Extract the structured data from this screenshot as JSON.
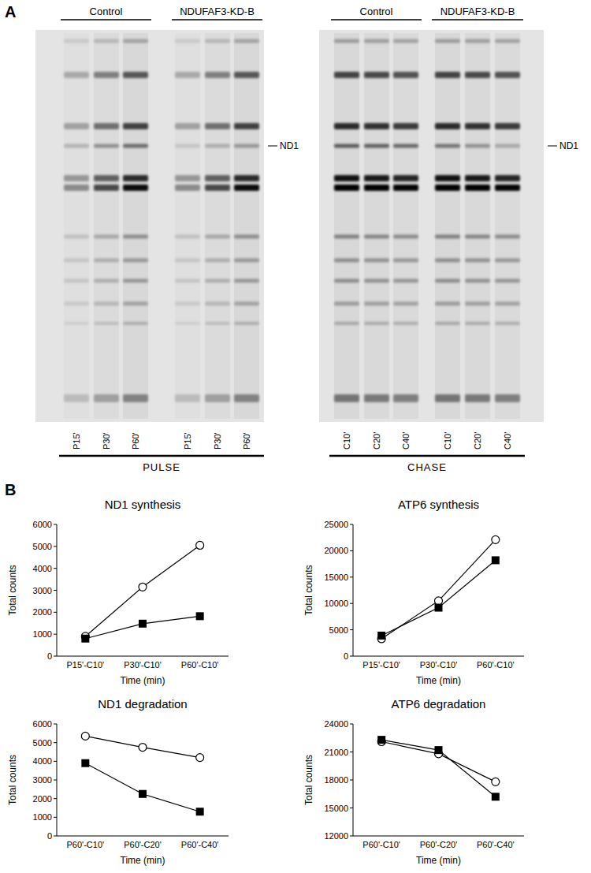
{
  "panel_labels": [
    "A",
    "B"
  ],
  "gels": [
    {
      "groups": [
        {
          "label": "Control",
          "lanes": [
            "P15'",
            "P30'",
            "P60'"
          ]
        },
        {
          "label": "NDUFAF3-KD-B",
          "lanes": [
            "P15'",
            "P30'",
            "P60'"
          ]
        }
      ],
      "band_label": "ND1",
      "footer": "PULSE"
    },
    {
      "groups": [
        {
          "label": "Control",
          "lanes": [
            "C10'",
            "C20'",
            "C40'"
          ]
        },
        {
          "label": "NDUFAF3-KD-B",
          "lanes": [
            "C10'",
            "C20'",
            "C40'"
          ]
        }
      ],
      "band_label": "ND1",
      "footer": "CHASE"
    }
  ],
  "chart_data": [
    {
      "type": "line",
      "title": "ND1 synthesis",
      "xlabel": "Time (min)",
      "ylabel": "Total counts",
      "categories": [
        "P15'-C10'",
        "P30'-C10'",
        "P60'-C10'"
      ],
      "ylim": [
        0,
        6000
      ],
      "yticks": [
        0,
        1000,
        2000,
        3000,
        4000,
        5000,
        6000
      ],
      "series": [
        {
          "color": "#000000",
          "marker": "open_circle",
          "values": [
            900,
            3150,
            5050
          ]
        },
        {
          "color": "#000000",
          "marker": "square",
          "values": [
            800,
            1480,
            1820
          ]
        }
      ]
    },
    {
      "type": "line",
      "title": "ATP6 synthesis",
      "xlabel": "Time (min)",
      "ylabel": "Total counts",
      "categories": [
        "P15'-C10'",
        "P30'-C10'",
        "P60'-C10'"
      ],
      "ylim": [
        0,
        25000
      ],
      "yticks": [
        0,
        5000,
        10000,
        15000,
        20000,
        25000
      ],
      "series": [
        {
          "color": "#000000",
          "marker": "open_circle",
          "values": [
            3300,
            10500,
            22100
          ]
        },
        {
          "color": "#000000",
          "marker": "square",
          "values": [
            3900,
            9200,
            18200
          ]
        }
      ]
    },
    {
      "type": "line",
      "title": "ND1 degradation",
      "xlabel": "Time (min)",
      "ylabel": "Total counts",
      "categories": [
        "P60'-C10'",
        "P60'-C20'",
        "P60'-C40'"
      ],
      "ylim": [
        0,
        6000
      ],
      "yticks": [
        0,
        1000,
        2000,
        3000,
        4000,
        5000,
        6000
      ],
      "series": [
        {
          "color": "#000000",
          "marker": "open_circle",
          "values": [
            5350,
            4750,
            4200
          ]
        },
        {
          "color": "#000000",
          "marker": "square",
          "values": [
            3900,
            2250,
            1300
          ]
        }
      ]
    },
    {
      "type": "line",
      "title": "ATP6 degradation",
      "xlabel": "Time (min)",
      "ylabel": "Total counts",
      "categories": [
        "P60'-C10'",
        "P60'-C20'",
        "P60'-C40'"
      ],
      "ylim": [
        12000,
        24000
      ],
      "yticks": [
        12000,
        15000,
        18000,
        21000,
        24000
      ],
      "series": [
        {
          "color": "#000000",
          "marker": "open_circle",
          "values": [
            22100,
            20800,
            17800
          ]
        },
        {
          "color": "#000000",
          "marker": "square",
          "values": [
            22300,
            21200,
            16200
          ]
        }
      ]
    }
  ]
}
